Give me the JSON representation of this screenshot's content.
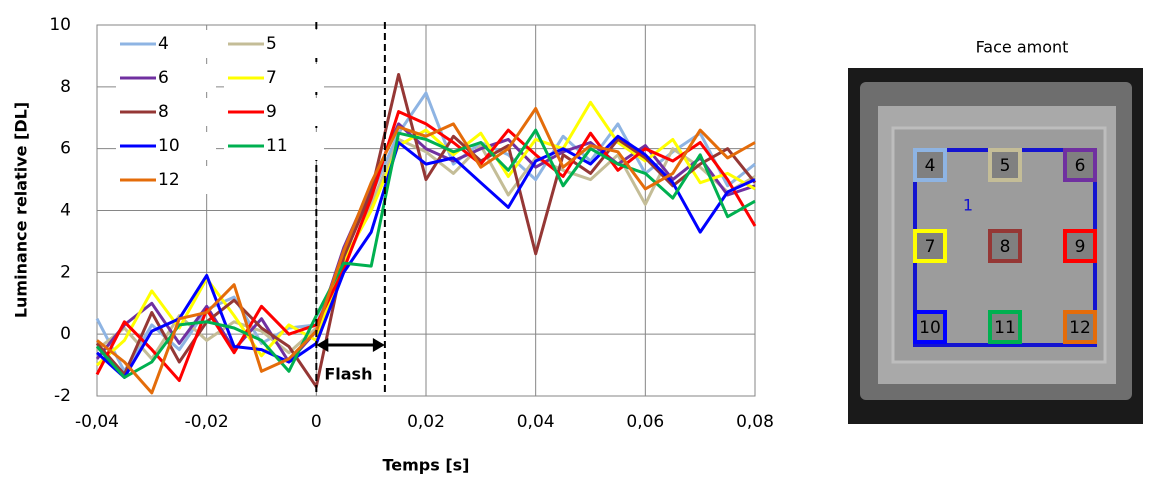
{
  "chart_data": {
    "type": "line",
    "ylabel": "Luminance relative [DL]",
    "xlabel": "Temps [s]",
    "x": [
      -0.04,
      -0.035,
      -0.03,
      -0.025,
      -0.02,
      -0.015,
      -0.01,
      -0.005,
      0,
      0.005,
      0.01,
      0.015,
      0.02,
      0.025,
      0.03,
      0.035,
      0.04,
      0.045,
      0.05,
      0.055,
      0.06,
      0.065,
      0.07,
      0.075,
      0.08
    ],
    "series": [
      {
        "name": "4",
        "color": "#8eb4e3",
        "values": [
          0.5,
          -1.2,
          0.3,
          -0.5,
          0.8,
          1.2,
          -0.3,
          0.2,
          0.3,
          2.6,
          4.5,
          6.5,
          7.8,
          5.5,
          6.2,
          5.8,
          5.0,
          6.4,
          5.6,
          6.8,
          5.2,
          5.9,
          6.5,
          4.8,
          5.5
        ]
      },
      {
        "name": "5",
        "color": "#c4bd97",
        "values": [
          -0.5,
          0.2,
          -0.8,
          0.6,
          -0.2,
          0.4,
          0.1,
          -0.6,
          0.2,
          2.2,
          4.2,
          6.3,
          5.9,
          5.2,
          6.1,
          4.5,
          5.7,
          5.3,
          5.0,
          5.8,
          4.2,
          6.0,
          5.4,
          4.6,
          5.1
        ]
      },
      {
        "name": "6",
        "color": "#7030a0",
        "values": [
          -0.8,
          0.3,
          1.0,
          -0.3,
          0.9,
          -0.5,
          0.5,
          -0.9,
          0.1,
          2.8,
          4.8,
          6.8,
          6.0,
          5.6,
          6.0,
          6.3,
          5.4,
          5.9,
          6.2,
          5.5,
          6.1,
          5.0,
          5.7,
          4.5,
          4.8
        ]
      },
      {
        "name": "7",
        "color": "#ffff00",
        "values": [
          -1.0,
          -0.2,
          1.4,
          0.2,
          1.8,
          0.6,
          -0.7,
          0.3,
          -0.2,
          2.4,
          4.0,
          6.1,
          6.6,
          5.8,
          6.5,
          5.1,
          6.3,
          6.0,
          7.5,
          6.2,
          5.6,
          6.3,
          4.9,
          5.2,
          4.7
        ]
      },
      {
        "name": "8",
        "color": "#953735",
        "values": [
          -0.3,
          -1.3,
          0.7,
          -0.9,
          0.4,
          1.1,
          0.2,
          -0.4,
          -1.7,
          2.5,
          4.6,
          8.4,
          5.0,
          6.4,
          5.6,
          6.1,
          2.6,
          5.8,
          5.2,
          6.3,
          5.7,
          4.8,
          5.5,
          6.0,
          4.9
        ]
      },
      {
        "name": "9",
        "color": "#ff0000",
        "values": [
          -1.3,
          0.4,
          -0.5,
          -1.5,
          0.8,
          -0.6,
          0.9,
          0.0,
          0.3,
          2.1,
          4.4,
          7.2,
          6.8,
          6.2,
          5.5,
          6.6,
          5.8,
          5.1,
          6.5,
          5.3,
          6.0,
          5.6,
          6.2,
          5.0,
          3.5
        ]
      },
      {
        "name": "10",
        "color": "#0000ff",
        "values": [
          -0.6,
          -1.4,
          0.1,
          0.5,
          1.9,
          -0.4,
          -0.5,
          -0.9,
          -0.3,
          2.0,
          3.3,
          6.2,
          5.5,
          5.7,
          4.9,
          4.1,
          5.6,
          6.0,
          5.5,
          6.4,
          5.8,
          4.9,
          3.3,
          4.6,
          5.0
        ]
      },
      {
        "name": "11",
        "color": "#00b050",
        "values": [
          -0.4,
          -1.4,
          -0.9,
          0.3,
          0.4,
          0.2,
          -0.2,
          -1.2,
          0.6,
          2.3,
          2.2,
          6.5,
          6.3,
          5.9,
          6.2,
          5.3,
          6.6,
          4.8,
          6.0,
          5.5,
          5.2,
          4.4,
          5.8,
          3.8,
          4.3
        ]
      },
      {
        "name": "12",
        "color": "#e46c0a",
        "values": [
          -0.2,
          -0.9,
          -1.9,
          0.5,
          0.7,
          1.6,
          -1.2,
          -0.8,
          0.1,
          2.7,
          4.9,
          6.7,
          6.4,
          6.8,
          5.4,
          6.0,
          7.3,
          5.4,
          6.1,
          5.9,
          4.7,
          5.2,
          6.6,
          5.7,
          6.2
        ]
      }
    ],
    "xlim": [
      -0.04,
      0.08
    ],
    "xticks": [
      {
        "value": -0.04,
        "label": "-0,04"
      },
      {
        "value": -0.02,
        "label": "-0,02"
      },
      {
        "value": 0,
        "label": "0"
      },
      {
        "value": 0.02,
        "label": "0,02"
      },
      {
        "value": 0.04,
        "label": "0,04"
      },
      {
        "value": 0.06,
        "label": "0,06"
      },
      {
        "value": 0.08,
        "label": "0,08"
      }
    ],
    "ylim": [
      -2,
      10
    ],
    "yticks": [
      -2,
      0,
      2,
      4,
      6,
      8,
      10
    ],
    "grid": true,
    "flash": {
      "label": "Flash",
      "x": [
        0,
        0.0125
      ]
    }
  },
  "panel": {
    "title": "Face amont",
    "zone_label": "1",
    "regions": [
      "4",
      "5",
      "6",
      "7",
      "8",
      "9",
      "10",
      "11",
      "12"
    ]
  }
}
